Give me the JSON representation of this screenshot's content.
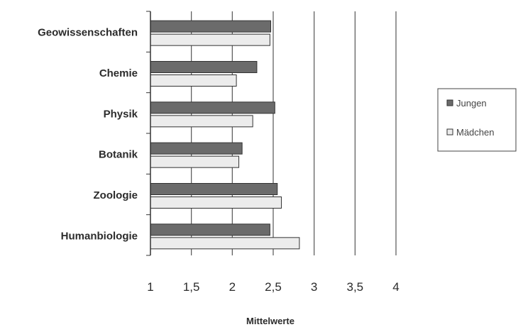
{
  "chart_data": {
    "type": "bar",
    "orientation": "horizontal",
    "categories": [
      "Geowissenschaften",
      "Chemie",
      "Physik",
      "Botanik",
      "Zoologie",
      "Humanbiologie"
    ],
    "series": [
      {
        "name": "Jungen",
        "values": [
          2.47,
          2.3,
          2.52,
          2.12,
          2.55,
          2.46
        ],
        "color": "#6b6b6b"
      },
      {
        "name": "Mädchen",
        "values": [
          2.46,
          2.05,
          2.25,
          2.08,
          2.6,
          2.82
        ],
        "color": "#ececec"
      }
    ],
    "x_ticks": [
      "1",
      "1,5",
      "2",
      "2,5",
      "3",
      "3,5",
      "4"
    ],
    "xlim": [
      1,
      4
    ],
    "xlabel": "Mittelwerte",
    "ylabel": "",
    "title": "",
    "grid": "vertical",
    "legend_position": "right"
  }
}
